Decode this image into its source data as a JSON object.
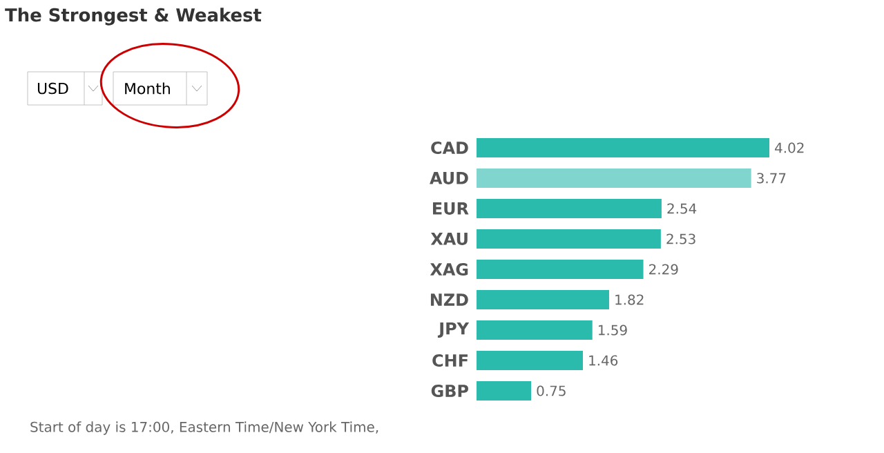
{
  "chart_data": {
    "type": "bar",
    "orientation": "horizontal",
    "title": "The Strongest & Weakest",
    "categories": [
      "CAD",
      "AUD",
      "EUR",
      "XAU",
      "XAG",
      "NZD",
      "JPY",
      "CHF",
      "GBP"
    ],
    "values": [
      4.02,
      3.77,
      2.54,
      2.53,
      2.29,
      1.82,
      1.59,
      1.46,
      0.75
    ],
    "colors": [
      "#2bbbad",
      "#80d6cf",
      "#2bbbad",
      "#2bbbad",
      "#2bbbad",
      "#2bbbad",
      "#2bbbad",
      "#2bbbad",
      "#2bbbad"
    ],
    "data_labels": true,
    "annotations": [
      "USD",
      "Month",
      "Start of day is 17:00, Eastern Time/New York Time,"
    ]
  }
}
